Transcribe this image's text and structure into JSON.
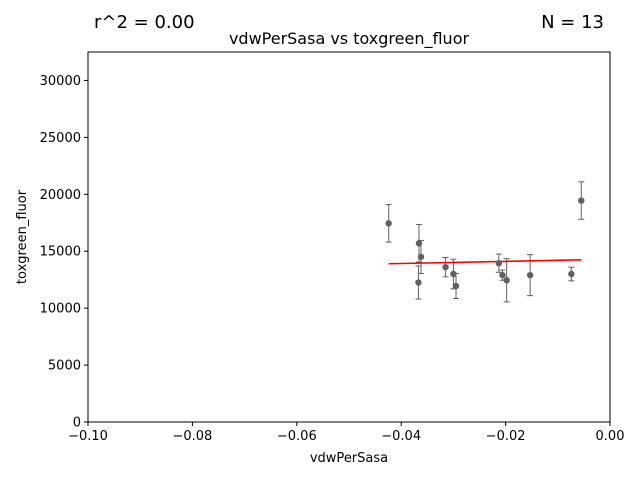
{
  "stats": {
    "r2_text": "r^2 = 0.00",
    "n_text": "N = 13"
  },
  "chart_data": {
    "type": "scatter",
    "title": "vdwPerSasa vs toxgreen_fluor",
    "xlabel": "vdwPerSasa",
    "ylabel": "toxgreen_fluor",
    "xlim": [
      -0.1,
      0.0
    ],
    "ylim": [
      0,
      32500
    ],
    "xticks": [
      -0.1,
      -0.08,
      -0.06,
      -0.04,
      -0.02,
      0.0
    ],
    "xtick_labels": [
      "−0.10",
      "−0.08",
      "−0.06",
      "−0.04",
      "−0.02",
      "0.00"
    ],
    "yticks": [
      0,
      5000,
      10000,
      15000,
      20000,
      25000,
      30000
    ],
    "ytick_labels": [
      "0",
      "5000",
      "10000",
      "15000",
      "20000",
      "25000",
      "30000"
    ],
    "grid": false,
    "points": [
      {
        "x": -0.0424,
        "y": 17450,
        "err": 1650
      },
      {
        "x": -0.0366,
        "y": 15700,
        "err": 1650
      },
      {
        "x": -0.0362,
        "y": 14500,
        "err": 1450
      },
      {
        "x": -0.0367,
        "y": 12250,
        "err": 1450
      },
      {
        "x": -0.0315,
        "y": 13600,
        "err": 850
      },
      {
        "x": -0.03,
        "y": 13000,
        "err": 1300
      },
      {
        "x": -0.0295,
        "y": 11950,
        "err": 1100
      },
      {
        "x": -0.0213,
        "y": 13950,
        "err": 800
      },
      {
        "x": -0.0206,
        "y": 12900,
        "err": 450
      },
      {
        "x": -0.0198,
        "y": 12450,
        "err": 1900
      },
      {
        "x": -0.0153,
        "y": 12900,
        "err": 1800
      },
      {
        "x": -0.0074,
        "y": 13000,
        "err": 600
      },
      {
        "x": -0.0055,
        "y": 19450,
        "err": 1650
      }
    ],
    "fit_line": {
      "x": [
        -0.0424,
        -0.0055
      ],
      "y": [
        13900,
        14250
      ],
      "color": "#ff0000"
    },
    "marker_color": "#606060"
  }
}
